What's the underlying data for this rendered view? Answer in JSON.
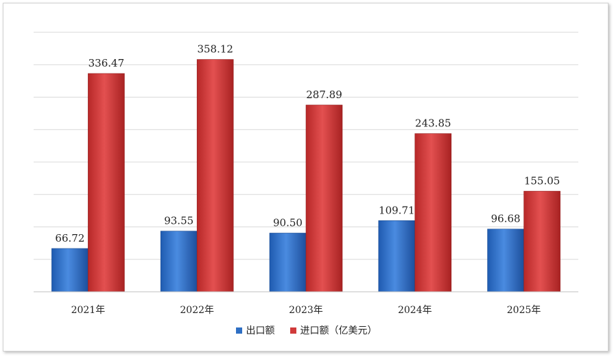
{
  "chart_data": {
    "type": "bar",
    "title": "",
    "xlabel": "",
    "ylabel": "",
    "categories": [
      "2021年",
      "2022年",
      "2023年",
      "2024年",
      "2025年"
    ],
    "series": [
      {
        "name": "出口额",
        "color": "#2e6fc4",
        "values": [
          66.72,
          93.55,
          90.5,
          109.71,
          96.68
        ],
        "labels": [
          "66.72",
          "93.55",
          "90.50",
          "109.71",
          "96.68"
        ]
      },
      {
        "name": "进口额（亿美元）",
        "color": "#d03a3a",
        "values": [
          336.47,
          358.12,
          287.89,
          243.85,
          155.05
        ],
        "labels": [
          "336.47",
          "358.12",
          "287.89",
          "243.85",
          "155.05"
        ]
      }
    ],
    "ylim": [
      0,
      400
    ],
    "grid": true,
    "legend_position": "bottom"
  }
}
